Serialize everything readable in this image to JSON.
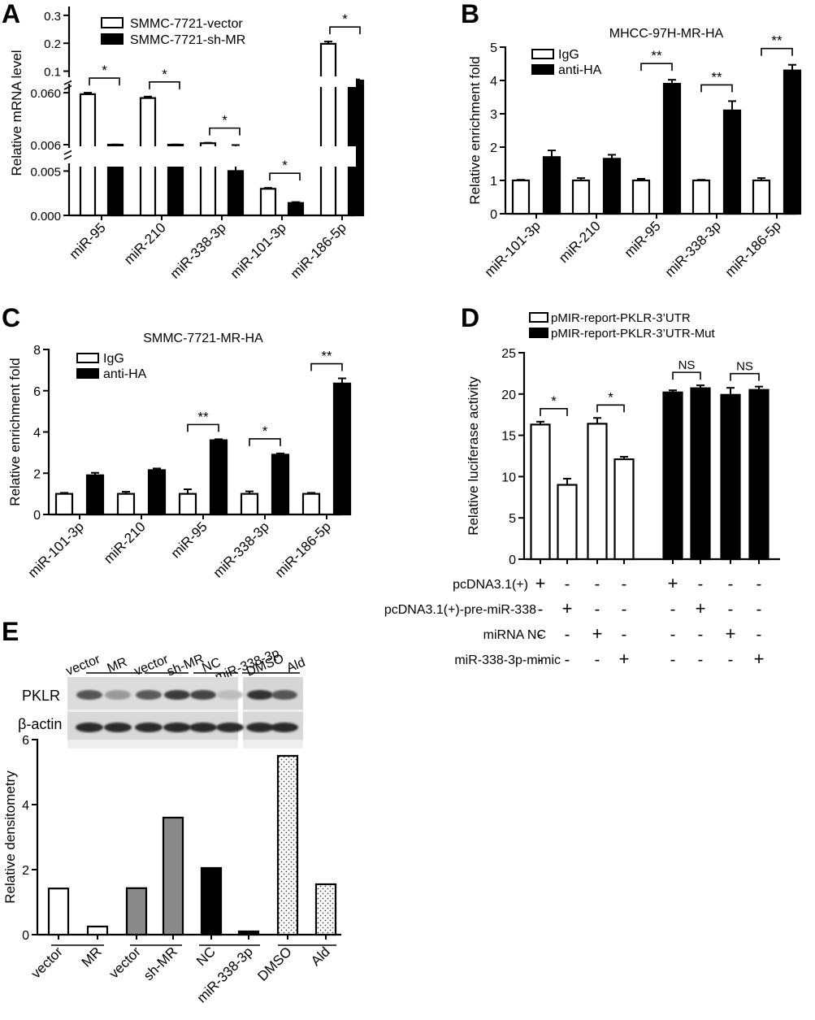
{
  "panels": [
    {
      "id": "A",
      "letter": "A",
      "chart_data": {
        "type": "bar",
        "title": "",
        "ylabel": "Relative mRNA level",
        "categories": [
          "miR-95",
          "miR-210",
          "miR-338-3p",
          "miR-101-3p",
          "miR-186-5p"
        ],
        "series": [
          {
            "name": "SMMC-7721-vector",
            "values": [
              0.0585,
              0.0545,
              0.0075,
              0.003,
              0.198
            ],
            "errors": [
              0.0015,
              0.0015,
              0.0005,
              0.0001,
              0.008
            ]
          },
          {
            "name": "SMMC-7721-sh-MR",
            "values": [
              0.006,
              0.006,
              0.005,
              0.0014,
              0.0665
            ],
            "errors": [
              0.0002,
              0.0002,
              0.0006,
              0.0001,
              0.004
            ]
          }
        ],
        "broken_axis": true,
        "y_segments": [
          {
            "ylim": [
              0,
              0.0055
            ],
            "ticks": [
              0.0,
              0.005
            ],
            "tick_labels": [
              "0.000",
              "0.005"
            ]
          },
          {
            "ylim": [
              0.006,
              0.066
            ],
            "ticks": [
              0.006,
              0.06
            ],
            "tick_labels": [
              "0.006",
              "0.060"
            ]
          },
          {
            "ylim": [
              0.09,
              0.32
            ],
            "ticks": [
              0.1,
              0.2,
              0.3
            ],
            "tick_labels": [
              "0.1",
              "0.2",
              "0.3"
            ]
          }
        ],
        "significance": [
          {
            "category": 0,
            "label": "*"
          },
          {
            "category": 1,
            "label": "*"
          },
          {
            "category": 2,
            "label": "*"
          },
          {
            "category": 3,
            "label": "*"
          },
          {
            "category": 4,
            "label": "*"
          }
        ],
        "legend": "top-left",
        "series_styles": [
          {
            "fill": "#ffffff"
          },
          {
            "fill": "#000000"
          }
        ]
      }
    },
    {
      "id": "B",
      "letter": "B",
      "chart_data": {
        "type": "bar",
        "title": "MHCC-97H-MR-HA",
        "ylabel": "Relative enrichment fold",
        "categories": [
          "miR-101-3p",
          "miR-210",
          "miR-95",
          "miR-338-3p",
          "miR-186-5p"
        ],
        "ylim": [
          0,
          5
        ],
        "yticks": [
          0,
          1,
          2,
          3,
          4,
          5
        ],
        "series": [
          {
            "name": "IgG",
            "values": [
              1.0,
              1.0,
              1.0,
              1.0,
              1.0
            ],
            "errors": [
              0.02,
              0.07,
              0.05,
              0.02,
              0.07
            ]
          },
          {
            "name": "anti-HA",
            "values": [
              1.7,
              1.65,
              3.9,
              3.1,
              4.3
            ],
            "errors": [
              0.2,
              0.12,
              0.12,
              0.28,
              0.17
            ]
          }
        ],
        "significance": [
          {
            "category": 2,
            "label": "**"
          },
          {
            "category": 3,
            "label": "**"
          },
          {
            "category": 4,
            "label": "**"
          }
        ],
        "legend": "top-left",
        "series_styles": [
          {
            "fill": "#ffffff"
          },
          {
            "fill": "#000000"
          }
        ]
      }
    },
    {
      "id": "C",
      "letter": "C",
      "chart_data": {
        "type": "bar",
        "title": "SMMC-7721-MR-HA",
        "ylabel": "Relative enrichment fold",
        "categories": [
          "miR-101-3p",
          "miR-210",
          "miR-95",
          "miR-338-3p",
          "miR-186-5p"
        ],
        "ylim": [
          0,
          8
        ],
        "yticks": [
          0,
          2,
          4,
          6,
          8
        ],
        "series": [
          {
            "name": "IgG",
            "values": [
              1.0,
              1.0,
              1.0,
              1.0,
              1.0
            ],
            "errors": [
              0.05,
              0.1,
              0.22,
              0.12,
              0.05
            ]
          },
          {
            "name": "anti-HA",
            "values": [
              1.9,
              2.15,
              3.6,
              2.9,
              6.35
            ],
            "errors": [
              0.12,
              0.08,
              0.05,
              0.06,
              0.25
            ]
          }
        ],
        "significance": [
          {
            "category": 2,
            "label": "**"
          },
          {
            "category": 3,
            "label": "*"
          },
          {
            "category": 4,
            "label": "**"
          }
        ],
        "legend": "top-left",
        "series_styles": [
          {
            "fill": "#ffffff"
          },
          {
            "fill": "#000000"
          }
        ]
      }
    },
    {
      "id": "D",
      "letter": "D",
      "chart_data": {
        "type": "bar",
        "title": "",
        "ylabel": "Relative luciferase activity",
        "ylim": [
          0,
          25
        ],
        "yticks": [
          0,
          5,
          10,
          15,
          20,
          25
        ],
        "series": [
          {
            "name": "pMIR-report-PKLR-3’UTR",
            "values": [
              16.3,
              9.0,
              16.4,
              12.1
            ],
            "errors": [
              0.35,
              0.75,
              0.7,
              0.3
            ]
          },
          {
            "name": "pMIR-report-PKLR-3’UTR-Mut",
            "values": [
              20.2,
              20.7,
              19.9,
              20.5
            ],
            "errors": [
              0.25,
              0.35,
              0.85,
              0.4
            ]
          }
        ],
        "significance": [
          {
            "bars": [
              0,
              1
            ],
            "label": "*"
          },
          {
            "bars": [
              2,
              3
            ],
            "label": "*"
          },
          {
            "bars": [
              4,
              5
            ],
            "label": "NS"
          },
          {
            "bars": [
              6,
              7
            ],
            "label": "NS"
          }
        ],
        "conditions": [
          {
            "label": "pcDNA3.1(+)",
            "marks": [
              "+",
              "-",
              "-",
              "-",
              "+",
              "-",
              "-",
              "-"
            ]
          },
          {
            "label": "pcDNA3.1(+)-pre-miR-338",
            "marks": [
              "-",
              "+",
              "-",
              "-",
              "-",
              "+",
              "-",
              "-"
            ]
          },
          {
            "label": "miRNA NC",
            "marks": [
              "-",
              "-",
              "+",
              "-",
              "-",
              "-",
              "+",
              "-"
            ]
          },
          {
            "label": "miR-338-3p-mimic",
            "marks": [
              "-",
              "-",
              "-",
              "+",
              "-",
              "-",
              "-",
              "+"
            ]
          }
        ],
        "legend": "top",
        "series_styles": [
          {
            "fill": "#ffffff"
          },
          {
            "fill": "#000000"
          }
        ]
      }
    },
    {
      "id": "E",
      "letter": "E",
      "blot": {
        "rows": [
          "PKLR",
          "β-actin"
        ],
        "group_labels": [
          {
            "a": "vector",
            "b": "MR"
          },
          {
            "a": "vector",
            "b": "sh-MR"
          },
          {
            "a": "NC",
            "b": "miR-338-3p"
          },
          {
            "a": "DMSO",
            "b": "Ald"
          }
        ]
      },
      "chart_data": {
        "type": "bar",
        "title": "",
        "ylabel": "Relative densitometry",
        "ylim": [
          0,
          6
        ],
        "yticks": [
          0,
          2,
          4,
          6
        ],
        "categories": [
          "vector",
          "MR",
          "vector",
          "sh-MR",
          "NC",
          "miR-338-3p",
          "DMSO",
          "Ald"
        ],
        "values": [
          1.42,
          0.25,
          1.43,
          3.6,
          2.05,
          0.1,
          5.5,
          1.55
        ],
        "bar_fills": [
          "#ffffff",
          "#ffffff",
          "#8a8a8a",
          "#8a8a8a",
          "#000000",
          "#000000",
          "dots",
          "dots"
        ]
      }
    }
  ]
}
